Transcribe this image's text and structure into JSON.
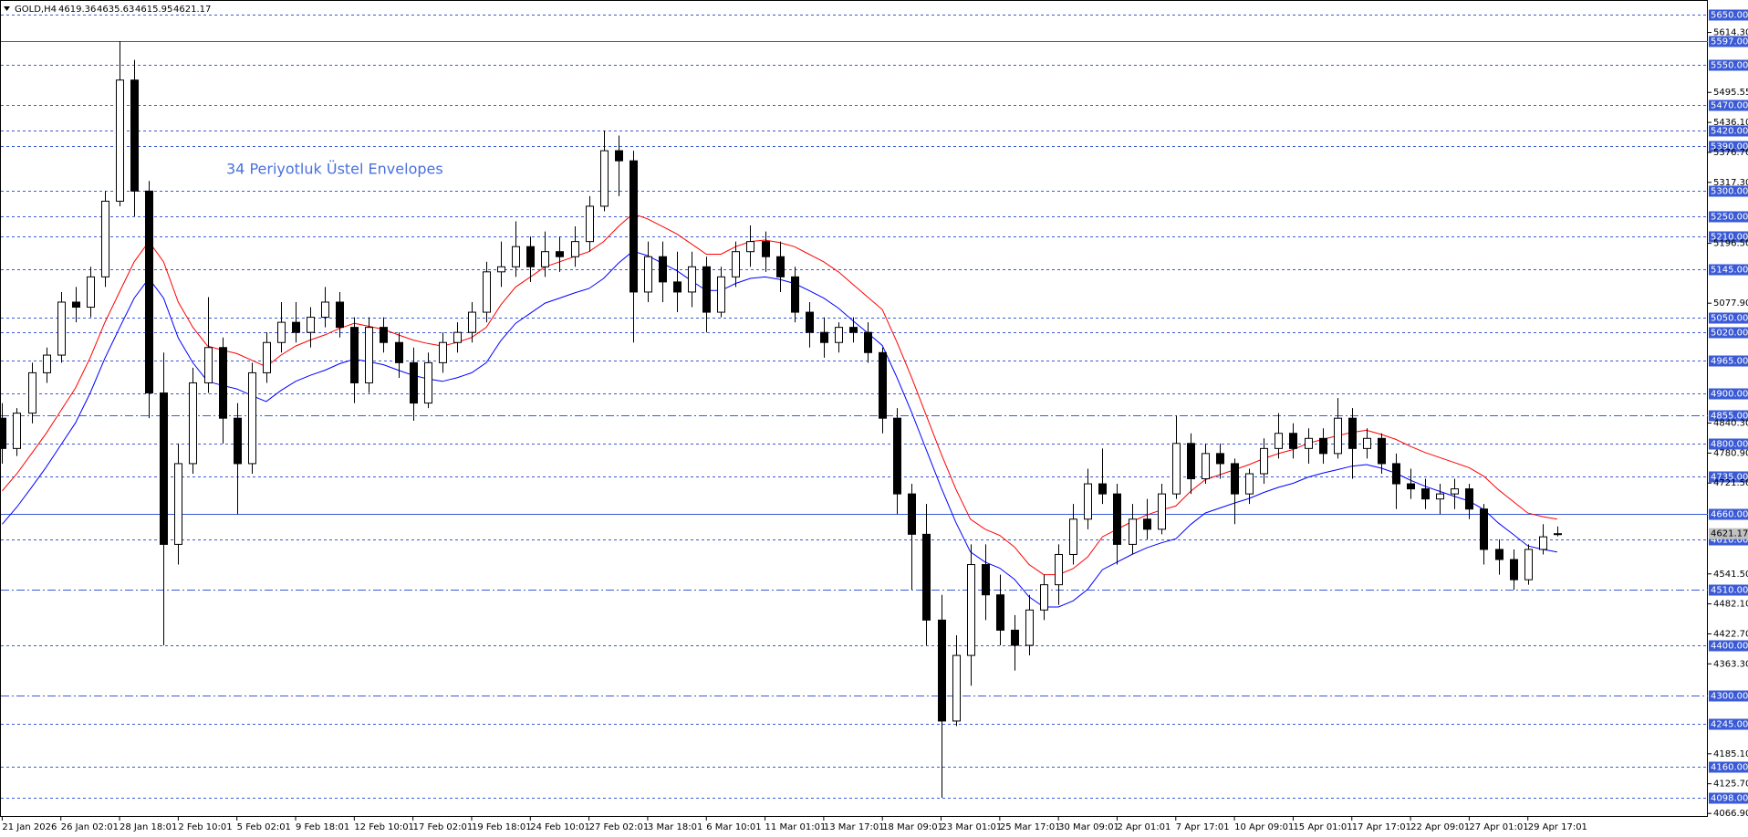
{
  "chart_data": {
    "type": "candlestick",
    "symbol": "GOLD,H4",
    "annotation": "34 Periyotluk Üstel Envelopes",
    "categories": [
      "21 Jan 2026",
      null,
      null,
      null,
      "26 Jan 02:01",
      null,
      null,
      null,
      "28 Jan 18:01",
      null,
      null,
      null,
      "2 Feb 10:01",
      null,
      null,
      null,
      "5 Feb 02:01",
      null,
      null,
      null,
      "9 Feb 18:01",
      null,
      null,
      null,
      "12 Feb 10:01",
      null,
      null,
      null,
      "17 Feb 02:01",
      null,
      null,
      null,
      "19 Feb 18:01",
      null,
      null,
      null,
      "24 Feb 10:01",
      null,
      null,
      null,
      "27 Feb 02:01",
      null,
      null,
      null,
      "3 Mar 18:01",
      null,
      null,
      null,
      "6 Mar 10:01",
      null,
      null,
      null,
      "11 Mar 01:01",
      null,
      null,
      null,
      "13 Mar 17:01",
      null,
      null,
      null,
      "18 Mar 09:01",
      null,
      null,
      null,
      "23 Mar 01:01",
      null,
      null,
      null,
      "25 Mar 17:01",
      null,
      null,
      null,
      "30 Mar 09:01",
      null,
      null,
      null,
      "2 Apr 01:01",
      null,
      null,
      null,
      "7 Apr 17:01",
      null,
      null,
      null,
      "10 Apr 09:01",
      null,
      null,
      null,
      "15 Apr 01:01",
      null,
      null,
      null,
      "17 Apr 17:01",
      null,
      null,
      null,
      "22 Apr 09:01",
      null,
      null,
      null,
      "27 Apr 01:01",
      null,
      null,
      null,
      "29 Apr 17:01",
      null,
      null
    ],
    "open": [
      4850,
      4790,
      4860,
      4940,
      4975,
      5080,
      5070,
      5130,
      5280,
      5520,
      5300,
      4900,
      4600,
      4760,
      4920,
      4990,
      4850,
      4760,
      4940,
      5000,
      5040,
      5020,
      5050,
      5080,
      5030,
      4920,
      5030,
      5000,
      4960,
      4880,
      4960,
      5000,
      5020,
      5060,
      5140,
      5150,
      5190,
      5150,
      5180,
      5170,
      5200,
      5270,
      5380,
      5360,
      5100,
      5170,
      5120,
      5100,
      5150,
      5060,
      5130,
      5180,
      5200,
      5170,
      5130,
      5060,
      5020,
      5000,
      5030,
      5020,
      4980,
      4850,
      4700,
      4620,
      4450,
      4250,
      4380,
      4560,
      4500,
      4430,
      4400,
      4470,
      4520,
      4580,
      4650,
      4720,
      4700,
      4600,
      4650,
      4630,
      4700,
      4800,
      4730,
      4780,
      4760,
      4700,
      4740,
      4790,
      4820,
      4790,
      4810,
      4780,
      4850,
      4790,
      4810,
      4760,
      4720,
      4710,
      4690,
      4700,
      4710,
      4670,
      4590,
      4570,
      4530,
      4590,
      4619.36
    ],
    "high": [
      4880,
      4870,
      4960,
      4990,
      5100,
      5110,
      5150,
      5300,
      5597,
      5560,
      5320,
      4980,
      4800,
      4950,
      5090,
      5010,
      4880,
      4960,
      5020,
      5080,
      5080,
      5070,
      5110,
      5100,
      5050,
      5050,
      5050,
      5020,
      4990,
      4980,
      5020,
      5040,
      5080,
      5160,
      5200,
      5240,
      5210,
      5220,
      5210,
      5230,
      5290,
      5420,
      5410,
      5380,
      5200,
      5200,
      5180,
      5180,
      5170,
      5150,
      5200,
      5232,
      5220,
      5200,
      5150,
      5080,
      5050,
      5040,
      5050,
      5040,
      4990,
      4870,
      4720,
      4680,
      4500,
      4420,
      4600,
      4600,
      4540,
      4460,
      4500,
      4540,
      4600,
      4680,
      4750,
      4790,
      4720,
      4680,
      4690,
      4720,
      4855,
      4820,
      4800,
      4800,
      4770,
      4750,
      4810,
      4860,
      4840,
      4830,
      4830,
      4890,
      4870,
      4830,
      4820,
      4780,
      4750,
      4730,
      4720,
      4730,
      4720,
      4680,
      4610,
      4590,
      4600,
      4640,
      4635.63
    ],
    "low": [
      4760,
      4775,
      4840,
      4920,
      4960,
      5040,
      5050,
      5110,
      5270,
      5250,
      4850,
      4400,
      4560,
      4740,
      4900,
      4800,
      4660,
      4740,
      4920,
      4980,
      5000,
      4990,
      5030,
      5010,
      4880,
      4900,
      4980,
      4930,
      4845,
      4870,
      4940,
      4980,
      5000,
      5040,
      5110,
      5130,
      5120,
      5130,
      5140,
      5150,
      5180,
      5260,
      5290,
      5000,
      5080,
      5080,
      5060,
      5070,
      5020,
      5050,
      5110,
      5150,
      5140,
      5100,
      5040,
      4990,
      4970,
      4980,
      5000,
      4960,
      4820,
      4660,
      4510,
      4400,
      4098,
      4240,
      4320,
      4450,
      4400,
      4350,
      4380,
      4450,
      4480,
      4560,
      4630,
      4680,
      4560,
      4580,
      4610,
      4620,
      4690,
      4700,
      4720,
      4730,
      4640,
      4680,
      4720,
      4770,
      4770,
      4760,
      4760,
      4770,
      4730,
      4770,
      4740,
      4670,
      4690,
      4670,
      4660,
      4670,
      4650,
      4560,
      4540,
      4510,
      4520,
      4580,
      4615.95
    ],
    "close": [
      4790,
      4860,
      4940,
      4975,
      5080,
      5070,
      5130,
      5280,
      5520,
      5300,
      4900,
      4600,
      4760,
      4920,
      4990,
      4850,
      4760,
      4940,
      5000,
      5040,
      5020,
      5050,
      5080,
      5030,
      4920,
      5030,
      5000,
      4960,
      4880,
      4960,
      5000,
      5020,
      5060,
      5140,
      5150,
      5190,
      5150,
      5180,
      5170,
      5200,
      5270,
      5380,
      5360,
      5100,
      5170,
      5120,
      5100,
      5150,
      5060,
      5130,
      5180,
      5200,
      5170,
      5130,
      5060,
      5020,
      5000,
      5030,
      5020,
      4980,
      4850,
      4700,
      4620,
      4450,
      4250,
      4380,
      4560,
      4500,
      4430,
      4400,
      4470,
      4520,
      4580,
      4650,
      4720,
      4700,
      4600,
      4650,
      4630,
      4700,
      4800,
      4730,
      4780,
      4760,
      4700,
      4740,
      4790,
      4820,
      4790,
      4810,
      4780,
      4850,
      4790,
      4810,
      4760,
      4720,
      4710,
      4690,
      4700,
      4710,
      4670,
      4590,
      4570,
      4530,
      4590,
      4615,
      4621.17
    ],
    "series": [
      {
        "color": "#ff0000",
        "values": [
          4706,
          4740,
          4780,
          4820,
          4865,
          4910,
          4970,
          5040,
          5100,
          5160,
          5200,
          5160,
          5080,
          5030,
          4993,
          4985,
          4978,
          4965,
          4952,
          4975,
          4993,
          5005,
          5015,
          5028,
          5038,
          5032,
          5026,
          5015,
          5005,
          4998,
          4993,
          5000,
          5010,
          5030,
          5075,
          5110,
          5130,
          5150,
          5160,
          5170,
          5180,
          5200,
          5230,
          5255,
          5245,
          5230,
          5215,
          5195,
          5175,
          5175,
          5190,
          5200,
          5203,
          5198,
          5190,
          5175,
          5160,
          5140,
          5115,
          5090,
          5065,
          5000,
          4930,
          4855,
          4780,
          4710,
          4650,
          4630,
          4618,
          4595,
          4560,
          4540,
          4540,
          4552,
          4575,
          4615,
          4630,
          4645,
          4658,
          4668,
          4676,
          4705,
          4728,
          4738,
          4748,
          4758,
          4770,
          4780,
          4788,
          4800,
          4808,
          4815,
          4822,
          4826,
          4818,
          4808,
          4794,
          4782,
          4772,
          4762,
          4752,
          4735,
          4708,
          4685,
          4662,
          4655,
          4650
        ]
      },
      {
        "color": "#0000ff",
        "values": [
          4640,
          4674,
          4713,
          4753,
          4797,
          4841,
          4900,
          4969,
          5029,
          5088,
          5127,
          5088,
          5009,
          4960,
          4923,
          4915,
          4908,
          4895,
          4883,
          4905,
          4923,
          4935,
          4945,
          4958,
          4967,
          4962,
          4956,
          4945,
          4935,
          4928,
          4923,
          4930,
          4940,
          4960,
          5004,
          5038,
          5058,
          5078,
          5088,
          5098,
          5107,
          5127,
          5157,
          5181,
          5172,
          5157,
          5142,
          5122,
          5103,
          5103,
          5117,
          5127,
          5130,
          5125,
          5117,
          5103,
          5088,
          5068,
          5043,
          5019,
          4994,
          4930,
          4861,
          4787,
          4713,
          4644,
          4585,
          4565,
          4553,
          4531,
          4496,
          4476,
          4476,
          4488,
          4511,
          4550,
          4565,
          4580,
          4593,
          4603,
          4611,
          4639,
          4662,
          4672,
          4682,
          4691,
          4703,
          4713,
          4721,
          4733,
          4741,
          4748,
          4755,
          4758,
          4751,
          4741,
          4727,
          4715,
          4705,
          4695,
          4686,
          4669,
          4642,
          4620,
          4597,
          4590,
          4585
        ]
      }
    ],
    "ylim": [
      4060,
      5675
    ],
    "level_color": "#3b5bd6",
    "levels": [
      {
        "value": 5650,
        "label": "5650.00",
        "style": "dashed"
      },
      {
        "value": 5597,
        "label": "5597.00",
        "style": "solid"
      },
      {
        "value": 5550,
        "label": "5550.00",
        "style": "dashed"
      },
      {
        "value": 5470,
        "label": "5470.00",
        "style": "dashed"
      },
      {
        "value": 5420,
        "label": "5420.00",
        "style": "dashed"
      },
      {
        "value": 5390,
        "label": "5390.00",
        "style": "dashed"
      },
      {
        "value": 5300,
        "label": "5300.00",
        "style": "dashed"
      },
      {
        "value": 5250,
        "label": "5250.00",
        "style": "dashed"
      },
      {
        "value": 5210,
        "label": "5210.00",
        "style": "dashed"
      },
      {
        "value": 5145,
        "label": "5145.00",
        "style": "dashed"
      },
      {
        "value": 5050,
        "label": "5050.00",
        "style": "dashed"
      },
      {
        "value": 5020,
        "label": "5020.00",
        "style": "dashed"
      },
      {
        "value": 4965,
        "label": "4965.00",
        "style": "dashed"
      },
      {
        "value": 4900,
        "label": "4900.00",
        "style": "dashed"
      },
      {
        "value": 4855,
        "label": "4855.00",
        "style": "dashdot"
      },
      {
        "value": 4800,
        "label": "4800.00",
        "style": "dashed"
      },
      {
        "value": 4735,
        "label": "4735.00",
        "style": "dashed"
      },
      {
        "value": 4660,
        "label": "4660.00",
        "style": "solid"
      },
      {
        "value": 4610,
        "label": "4610.00",
        "style": "dashed"
      },
      {
        "value": 4510,
        "label": "4510.00",
        "style": "dashdot"
      },
      {
        "value": 4400,
        "label": "4400.00",
        "style": "dashed"
      },
      {
        "value": 4300,
        "label": "4300.00",
        "style": "dashdot"
      },
      {
        "value": 4245,
        "label": "4245.00",
        "style": "dashed"
      },
      {
        "value": 4160,
        "label": "4160.00",
        "style": "dashed"
      },
      {
        "value": 4098,
        "label": "4098.00",
        "style": "dashed"
      }
    ],
    "yticks": [
      {
        "value": 5614.3,
        "label": "5614.30"
      },
      {
        "value": 5495.55,
        "label": "5495.55"
      },
      {
        "value": 5436.1,
        "label": "5436.10"
      },
      {
        "value": 5376.7,
        "label": "5376.70"
      },
      {
        "value": 5317.3,
        "label": "5317.30"
      },
      {
        "value": 5196.5,
        "label": "5196.50"
      },
      {
        "value": 5077.9,
        "label": "5077.90"
      },
      {
        "value": 4840.3,
        "label": "4840.30"
      },
      {
        "value": 4780.9,
        "label": "4780.90"
      },
      {
        "value": 4721.5,
        "label": "4721.50"
      },
      {
        "value": 4541.5,
        "label": "4541.50"
      },
      {
        "value": 4482.1,
        "label": "4482.10"
      },
      {
        "value": 4422.7,
        "label": "4422.70"
      },
      {
        "value": 4363.3,
        "label": "4363.30"
      },
      {
        "value": 4185.1,
        "label": "4185.10"
      },
      {
        "value": 4125.7,
        "label": "4125.70"
      },
      {
        "value": 4066.9,
        "label": "4066.90"
      }
    ]
  }
}
